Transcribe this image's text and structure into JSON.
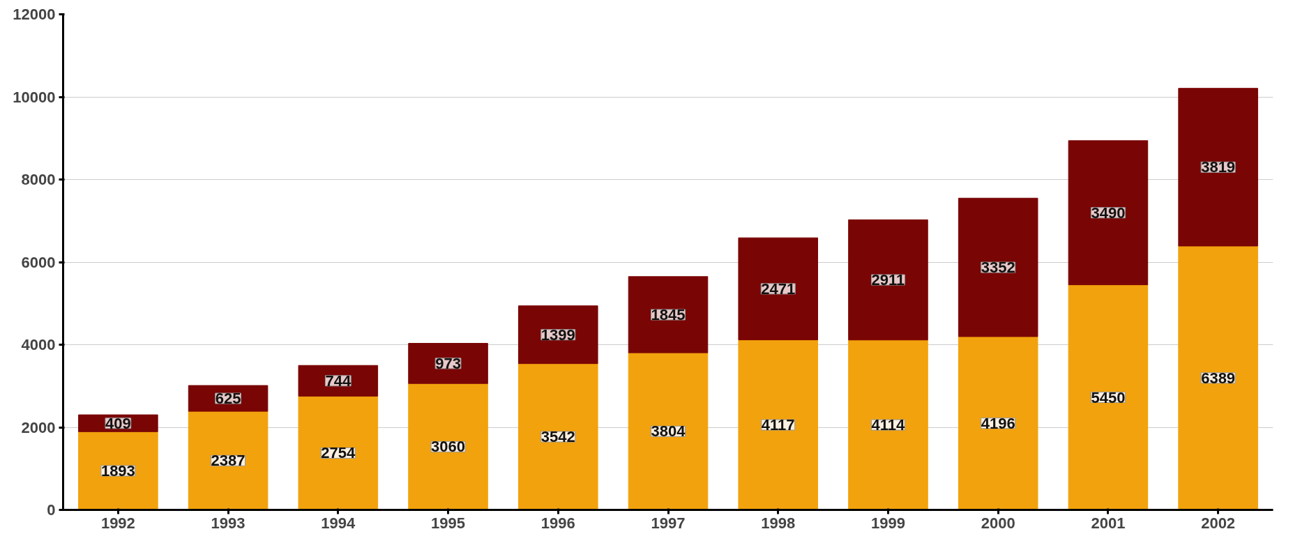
{
  "chart_data": {
    "type": "bar",
    "stacked": true,
    "categories": [
      "1992",
      "1993",
      "1994",
      "1995",
      "1996",
      "1997",
      "1998",
      "1999",
      "2000",
      "2001",
      "2002"
    ],
    "series": [
      {
        "color": "#f2a20c",
        "values": [
          1893,
          2387,
          2754,
          3060,
          3542,
          3804,
          4117,
          4114,
          4196,
          5450,
          6389
        ]
      },
      {
        "color": "#7a0505",
        "values": [
          409,
          625,
          744,
          973,
          1399,
          1845,
          2471,
          2911,
          3352,
          3490,
          3819
        ]
      }
    ],
    "ylim": [
      0,
      12000
    ],
    "yticks": [
      0,
      2000,
      4000,
      6000,
      8000,
      10000,
      12000
    ],
    "grid": "y",
    "data_labels": true
  }
}
